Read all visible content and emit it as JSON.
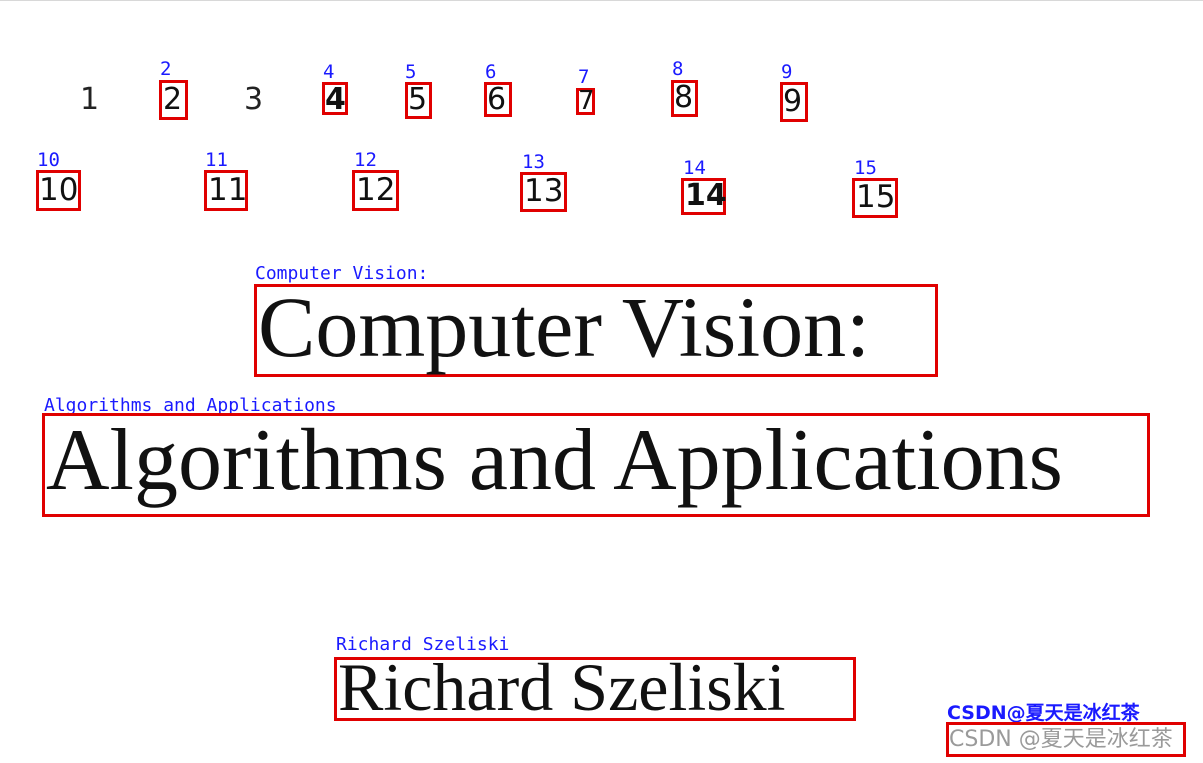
{
  "plain_numbers": [
    "1",
    "3"
  ],
  "detections": {
    "n2": {
      "label": "2",
      "text": "2"
    },
    "n4": {
      "label": "4",
      "text": "4"
    },
    "n5": {
      "label": "5",
      "text": "5"
    },
    "n6": {
      "label": "6",
      "text": "6"
    },
    "n7": {
      "label": "7",
      "text": "7"
    },
    "n8": {
      "label": "8",
      "text": "8"
    },
    "n9": {
      "label": "9",
      "text": "9"
    },
    "n10": {
      "label": "10",
      "text": "10"
    },
    "n11": {
      "label": "11",
      "text": "11"
    },
    "n12": {
      "label": "12",
      "text": "12"
    },
    "n13": {
      "label": "13",
      "text": "13"
    },
    "n14": {
      "label": "14",
      "text": "14"
    },
    "n15": {
      "label": "15",
      "text": "15"
    },
    "title": {
      "label": "Computer Vision:",
      "text": "Computer Vision:"
    },
    "subtitle": {
      "label": "Algorithms and Applications",
      "text": "Algorithms and Applications"
    },
    "author": {
      "label": "Richard Szeliski",
      "text": "Richard Szeliski"
    },
    "watermark": {
      "label": "CSDN@夏天是冰红茶",
      "text": "CSDN @夏天是冰红茶"
    }
  },
  "colors": {
    "box": "#e00000",
    "label": "#1a1aff",
    "text": "#111111"
  }
}
